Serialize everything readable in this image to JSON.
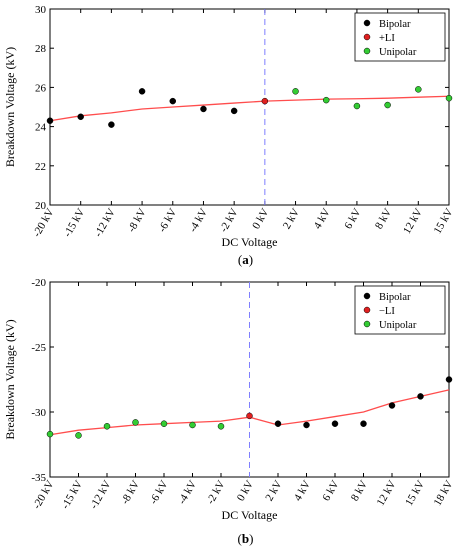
{
  "chart_data": [
    {
      "type": "scatter",
      "panel_label_prefix": "(",
      "panel_label_letter": "a",
      "panel_label_suffix": ")",
      "xlabel": "DC Voltage",
      "ylabel": "Breakdown Voltage (kV)",
      "ylim": [
        20,
        30
      ],
      "yticks": [
        20,
        22,
        24,
        26,
        28,
        30
      ],
      "categories": [
        "-20 kV",
        "-15 kV",
        "-12 kV",
        "-8 kV",
        "-6 kV",
        "-4 kV",
        "-2 kV",
        "0 kV",
        "2 kV",
        "4 kV",
        "6 kV",
        "8 kV",
        "12 kV",
        "15 kV"
      ],
      "grid": false,
      "legend_position": "top-right",
      "series": [
        {
          "name": "Bipolar",
          "color": "#000000",
          "kind": "points",
          "points": [
            [
              "-20 kV",
              24.3
            ],
            [
              "-15 kV",
              24.5
            ],
            [
              "-12 kV",
              24.1
            ],
            [
              "-8 kV",
              25.8
            ],
            [
              "-6 kV",
              25.3
            ],
            [
              "-4 kV",
              24.9
            ],
            [
              "-2 kV",
              24.8
            ]
          ]
        },
        {
          "name": "+LI",
          "color": "#e02020",
          "kind": "points",
          "points": [
            [
              "0 kV",
              25.3
            ]
          ]
        },
        {
          "name": "Unipolar",
          "color": "#33cc33",
          "kind": "points",
          "points": [
            [
              "2 kV",
              25.8
            ],
            [
              "4 kV",
              25.35
            ],
            [
              "6 kV",
              25.05
            ],
            [
              "8 kV",
              25.1
            ],
            [
              "12 kV",
              25.9
            ],
            [
              "15 kV",
              25.45
            ]
          ]
        }
      ],
      "trend_line": {
        "color": "#ff4d4d",
        "points": [
          [
            "-20 kV",
            24.3
          ],
          [
            "-15 kV",
            24.55
          ],
          [
            "-12 kV",
            24.7
          ],
          [
            "-8 kV",
            24.9
          ],
          [
            "-6 kV",
            25.0
          ],
          [
            "-4 kV",
            25.1
          ],
          [
            "-2 kV",
            25.2
          ],
          [
            "0 kV",
            25.3
          ],
          [
            "2 kV",
            25.35
          ],
          [
            "4 kV",
            25.4
          ],
          [
            "6 kV",
            25.42
          ],
          [
            "8 kV",
            25.45
          ],
          [
            "12 kV",
            25.5
          ],
          [
            "15 kV",
            25.55
          ]
        ]
      },
      "reference_line": {
        "category": "0 kV",
        "color": "#7f7fff",
        "style": "dashed"
      }
    },
    {
      "type": "scatter",
      "panel_label_prefix": "(",
      "panel_label_letter": "b",
      "panel_label_suffix": ")",
      "xlabel": "DC Voltage",
      "ylabel": "Breakdown Voltage (kV)",
      "ylim": [
        -35,
        -20
      ],
      "yticks": [
        -35,
        -30,
        -25,
        -20
      ],
      "categories": [
        "-20 kV",
        "-15 kV",
        "-12 kV",
        "-8 kV",
        "-6 kV",
        "-4 kV",
        "-2 kV",
        "0 kV",
        "2 kV",
        "4 kV",
        "6 kV",
        "8 kV",
        "12 kV",
        "15 kV",
        "18 kV"
      ],
      "grid": false,
      "legend_position": "top-right",
      "series": [
        {
          "name": "Bipolar",
          "color": "#000000",
          "kind": "points",
          "points": [
            [
              "2 kV",
              -30.9
            ],
            [
              "4 kV",
              -31.0
            ],
            [
              "6 kV",
              -30.9
            ],
            [
              "8 kV",
              -30.9
            ],
            [
              "12 kV",
              -29.5
            ],
            [
              "15 kV",
              -28.8
            ],
            [
              "18 kV",
              -27.5
            ]
          ]
        },
        {
          "name": "−LI",
          "color": "#e02020",
          "kind": "points",
          "points": [
            [
              "0 kV",
              -30.3
            ]
          ]
        },
        {
          "name": "Unipolar",
          "color": "#33cc33",
          "kind": "points",
          "points": [
            [
              "-20 kV",
              -31.7
            ],
            [
              "-15 kV",
              -31.8
            ],
            [
              "-12 kV",
              -31.1
            ],
            [
              "-8 kV",
              -30.8
            ],
            [
              "-6 kV",
              -30.9
            ],
            [
              "-4 kV",
              -31.0
            ],
            [
              "-2 kV",
              -31.1
            ]
          ]
        }
      ],
      "trend_line": {
        "color": "#ff4d4d",
        "points": [
          [
            "-20 kV",
            -31.75
          ],
          [
            "-15 kV",
            -31.4
          ],
          [
            "-12 kV",
            -31.2
          ],
          [
            "-8 kV",
            -31.0
          ],
          [
            "-6 kV",
            -30.9
          ],
          [
            "-4 kV",
            -30.8
          ],
          [
            "-2 kV",
            -30.7
          ],
          [
            "0 kV",
            -30.4
          ],
          [
            "2 kV",
            -31.0
          ],
          [
            "4 kV",
            -30.7
          ],
          [
            "6 kV",
            -30.35
          ],
          [
            "8 kV",
            -30.0
          ],
          [
            "12 kV",
            -29.3
          ],
          [
            "15 kV",
            -28.8
          ],
          [
            "18 kV",
            -28.3
          ]
        ]
      },
      "reference_line": {
        "category": "0 kV",
        "color": "#7f7fff",
        "style": "dashed"
      }
    }
  ]
}
